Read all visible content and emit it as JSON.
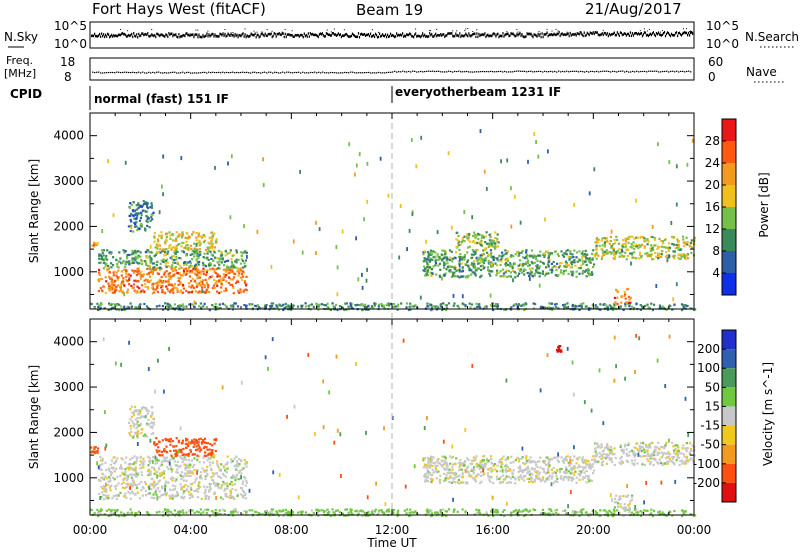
{
  "header": {
    "station": "Fort Hays West (fitACF)",
    "beam": "Beam 19",
    "date": "21/Aug/2017"
  },
  "noise_panel": {
    "left_label": "N.Sky",
    "right_label": "N.Search",
    "left_ticks": [
      "10^5",
      "10^0"
    ],
    "right_ticks": [
      "10^5",
      "10^0"
    ]
  },
  "freq_panel": {
    "left_label_1": "Freq.",
    "left_label_2": "[MHz]",
    "right_label": "Nave",
    "left_ticks": [
      "18",
      "8"
    ],
    "right_ticks": [
      "60",
      "0"
    ]
  },
  "cpid": {
    "label": "CPID",
    "segments": [
      {
        "text": "normal (fast) 151 IF",
        "start_hour": 0
      },
      {
        "text": "everyotherbeam 1231 IF",
        "start_hour": 12
      }
    ]
  },
  "x_axis": {
    "label": "Time UT",
    "ticks": [
      "00:00",
      "04:00",
      "08:00",
      "12:00",
      "16:00",
      "20:00",
      "00:00"
    ],
    "range_hours": [
      0,
      24
    ]
  },
  "colors": {
    "power": [
      "#1030e8",
      "#2c5fa8",
      "#3a8a5a",
      "#76c04a",
      "#f0c020",
      "#f49a20",
      "#ff5a10",
      "#e81818"
    ],
    "velocity": [
      "#2030c8",
      "#3060b0",
      "#4a9a5a",
      "#70c840",
      "#c8c8c8",
      "#f0c820",
      "#f49a20",
      "#ff5010",
      "#e01010"
    ]
  },
  "chart_data": [
    {
      "type": "heatmap",
      "title": "Power",
      "ylabel": "Slant Range [km]",
      "xlabel": "",
      "ylim": [
        180,
        4500
      ],
      "xlim_hours": [
        0,
        24
      ],
      "yticks": [
        "1000",
        "2000",
        "3000",
        "4000"
      ],
      "colorbar": {
        "label": "Power [dB]",
        "ticks": [
          "4",
          "8",
          "12",
          "16",
          "20",
          "24",
          "28"
        ],
        "range": [
          0,
          32
        ]
      },
      "echo_regions": [
        {
          "t0": 0.3,
          "t1": 6.2,
          "r0": 550,
          "r1": 1100,
          "level": 24
        },
        {
          "t0": 0.3,
          "t1": 6.2,
          "r0": 1100,
          "r1": 1500,
          "level": 12
        },
        {
          "t0": 2.5,
          "t1": 5.0,
          "r0": 1500,
          "r1": 1900,
          "level": 18
        },
        {
          "t0": 0.0,
          "t1": 0.3,
          "r0": 1550,
          "r1": 1700,
          "level": 22
        },
        {
          "t0": 1.5,
          "t1": 2.5,
          "r0": 1900,
          "r1": 2600,
          "level": 8
        },
        {
          "t0": 0.0,
          "t1": 24.0,
          "r0": 180,
          "r1": 330,
          "level": 10
        },
        {
          "t0": 13.2,
          "t1": 20.0,
          "r0": 900,
          "r1": 1500,
          "level": 12
        },
        {
          "t0": 14.5,
          "t1": 16.2,
          "r0": 1500,
          "r1": 1900,
          "level": 14
        },
        {
          "t0": 20.0,
          "t1": 24.0,
          "r0": 1300,
          "r1": 1800,
          "level": 16
        },
        {
          "t0": 20.8,
          "t1": 21.5,
          "r0": 300,
          "r1": 650,
          "level": 24
        }
      ]
    },
    {
      "type": "heatmap",
      "title": "Velocity",
      "ylabel": "Slant Range [km]",
      "xlabel": "Time UT",
      "ylim": [
        180,
        4500
      ],
      "xlim_hours": [
        0,
        24
      ],
      "yticks": [
        "1000",
        "2000",
        "3000",
        "4000"
      ],
      "colorbar": {
        "label": "Velocity [m s^-1]",
        "ticks": [
          "200",
          "100",
          "50",
          "15",
          "-15",
          "-50",
          "-100",
          "-200"
        ],
        "range": [
          -250,
          250
        ]
      },
      "echo_regions": [
        {
          "t0": 0.3,
          "t1": 6.2,
          "r0": 550,
          "r1": 1500,
          "level": 0
        },
        {
          "t0": 2.5,
          "t1": 5.0,
          "r0": 1500,
          "r1": 1900,
          "level": -120
        },
        {
          "t0": 0.0,
          "t1": 0.3,
          "r0": 1550,
          "r1": 1700,
          "level": -120
        },
        {
          "t0": 1.5,
          "t1": 2.5,
          "r0": 1900,
          "r1": 2600,
          "level": 0
        },
        {
          "t0": 0.0,
          "t1": 24.0,
          "r0": 180,
          "r1": 330,
          "level": 30
        },
        {
          "t0": 13.2,
          "t1": 20.0,
          "r0": 900,
          "r1": 1500,
          "level": 0
        },
        {
          "t0": 20.0,
          "t1": 24.0,
          "r0": 1300,
          "r1": 1800,
          "level": 0
        },
        {
          "t0": 20.8,
          "t1": 21.5,
          "r0": 300,
          "r1": 650,
          "level": 0
        },
        {
          "t0": 18.5,
          "t1": 18.7,
          "r0": 3800,
          "r1": 3950,
          "level": -220
        }
      ]
    }
  ]
}
